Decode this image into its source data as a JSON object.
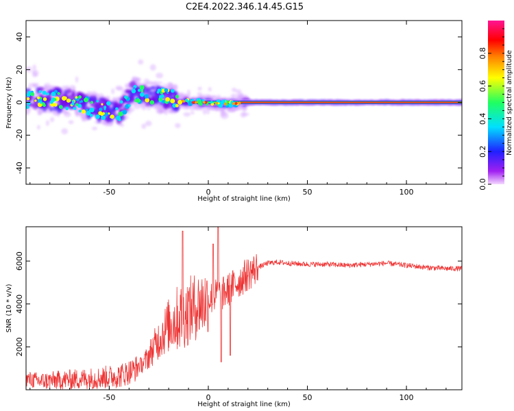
{
  "title": "C2E4.2022.346.14.45.G15",
  "chart_data": [
    {
      "type": "heatmap",
      "xlabel": "Height of straight line (km)",
      "ylabel": "Frequency (Hz)",
      "xlim": [
        -92,
        128
      ],
      "ylim": [
        -50,
        50
      ],
      "xticks": [
        -50,
        0,
        50,
        100
      ],
      "yticks": [
        -40,
        -20,
        0,
        20,
        40
      ],
      "colorbar": {
        "label": "Normalized spectral amplitude",
        "range": [
          0,
          1
        ],
        "ticks": [
          "0.0",
          "0.2",
          "0.4",
          "0.6",
          "0.8"
        ],
        "colors": [
          "#f4d8ff",
          "#a020f0",
          "#2020ff",
          "#00e0ff",
          "#20ff60",
          "#ffff00",
          "#ff8000",
          "#ff0000",
          "#ff1493"
        ]
      },
      "ridge": {
        "x": [
          -92,
          -80,
          -70,
          -66,
          -60,
          -50,
          -45,
          -38,
          -30,
          -20,
          -14,
          -8,
          0,
          10,
          20,
          60,
          90,
          128
        ],
        "y": [
          2,
          2,
          1,
          0,
          -3,
          -5,
          -6,
          6,
          4,
          3,
          1,
          0,
          0,
          -1,
          0,
          0,
          0,
          0
        ]
      }
    },
    {
      "type": "line",
      "xlabel": "Height of straight line (km)",
      "ylabel": "SNR (10 * v/v)",
      "xlim": [
        -92,
        128
      ],
      "ylim": [
        0,
        7600
      ],
      "xticks": [
        -50,
        0,
        50,
        100
      ],
      "yticks": [
        2000,
        4000,
        6000
      ],
      "color": "#ee3333",
      "envelope": {
        "x": [
          -92,
          -85,
          -75,
          -65,
          -55,
          -45,
          -38,
          -32,
          -28,
          -24,
          -20,
          -16,
          -12,
          -8,
          -4,
          0,
          4,
          8,
          12,
          16,
          20,
          25,
          30,
          35,
          40,
          50,
          60,
          70,
          80,
          90,
          100,
          110,
          120,
          128
        ],
        "y": [
          500,
          400,
          450,
          500,
          550,
          650,
          900,
          1300,
          1900,
          2500,
          3000,
          3300,
          3500,
          3800,
          4000,
          4200,
          4400,
          4500,
          4800,
          5100,
          5400,
          5700,
          5900,
          5950,
          5900,
          5850,
          5850,
          5800,
          5850,
          5900,
          5800,
          5700,
          5650,
          5650
        ]
      },
      "spikes": {
        "x": [
          -13,
          5,
          2.5,
          6.5,
          11
        ],
        "y": [
          7400,
          7600,
          6800,
          1300,
          1600
        ]
      }
    }
  ]
}
